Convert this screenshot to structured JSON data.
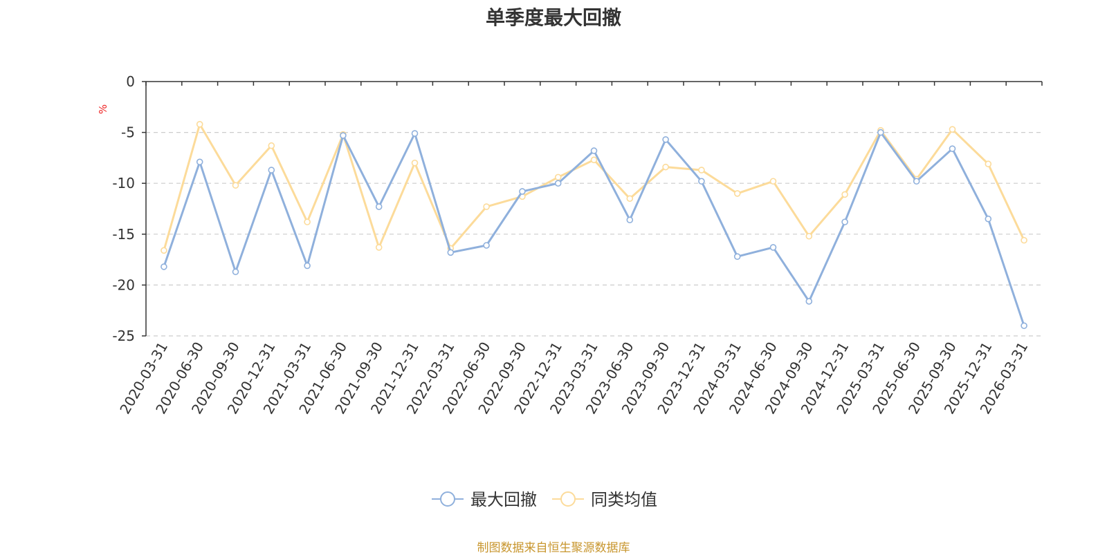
{
  "title": "单季度最大回撤",
  "source": "制图数据来自恒生聚源数据库",
  "colors": {
    "series1": "#8fb0dc",
    "series2": "#fcdb9a",
    "axis": "#333333",
    "grid": "#cccccc",
    "unit": "#ee2222",
    "source": "#c8962e"
  },
  "chart_data": {
    "type": "line",
    "ylabel": "%",
    "ylim": [
      -25,
      0
    ],
    "yticks": [
      0,
      -5,
      -10,
      -15,
      -20,
      -25
    ],
    "grid": true,
    "legend_position": "bottom-center",
    "categories": [
      "2020-03-31",
      "2020-06-30",
      "2020-09-30",
      "2020-12-31",
      "2021-03-31",
      "2021-06-30",
      "2021-09-30",
      "2021-12-31",
      "2022-03-31",
      "2022-06-30",
      "2022-09-30",
      "2022-12-31",
      "2023-03-31",
      "2023-06-30",
      "2023-09-30",
      "2023-12-31",
      "2024-03-31",
      "2024-06-30",
      "2024-09-30",
      "2024-12-31",
      "2025-03-31",
      "2025-06-30",
      "2025-09-30",
      "2025-12-31",
      "2026-03-31"
    ],
    "series": [
      {
        "name": "最大回撤",
        "values": [
          -18.2,
          -7.9,
          -18.7,
          -8.7,
          -18.1,
          -5.3,
          -12.3,
          -5.1,
          -16.8,
          -16.1,
          -10.8,
          -10.0,
          -6.8,
          -13.6,
          -5.7,
          -9.8,
          -17.2,
          -16.3,
          -21.6,
          -13.8,
          -5.0,
          -9.8,
          -6.6,
          -13.5,
          -24.0
        ]
      },
      {
        "name": "同类均值",
        "values": [
          -16.6,
          -4.2,
          -10.2,
          -6.3,
          -13.8,
          -5.2,
          -16.3,
          -8.0,
          -16.4,
          -12.3,
          -11.3,
          -9.4,
          -7.7,
          -11.5,
          -8.4,
          -8.7,
          -11.0,
          -9.8,
          -15.2,
          -11.1,
          -4.8,
          -9.6,
          -4.7,
          -8.1,
          -15.6
        ]
      }
    ]
  }
}
